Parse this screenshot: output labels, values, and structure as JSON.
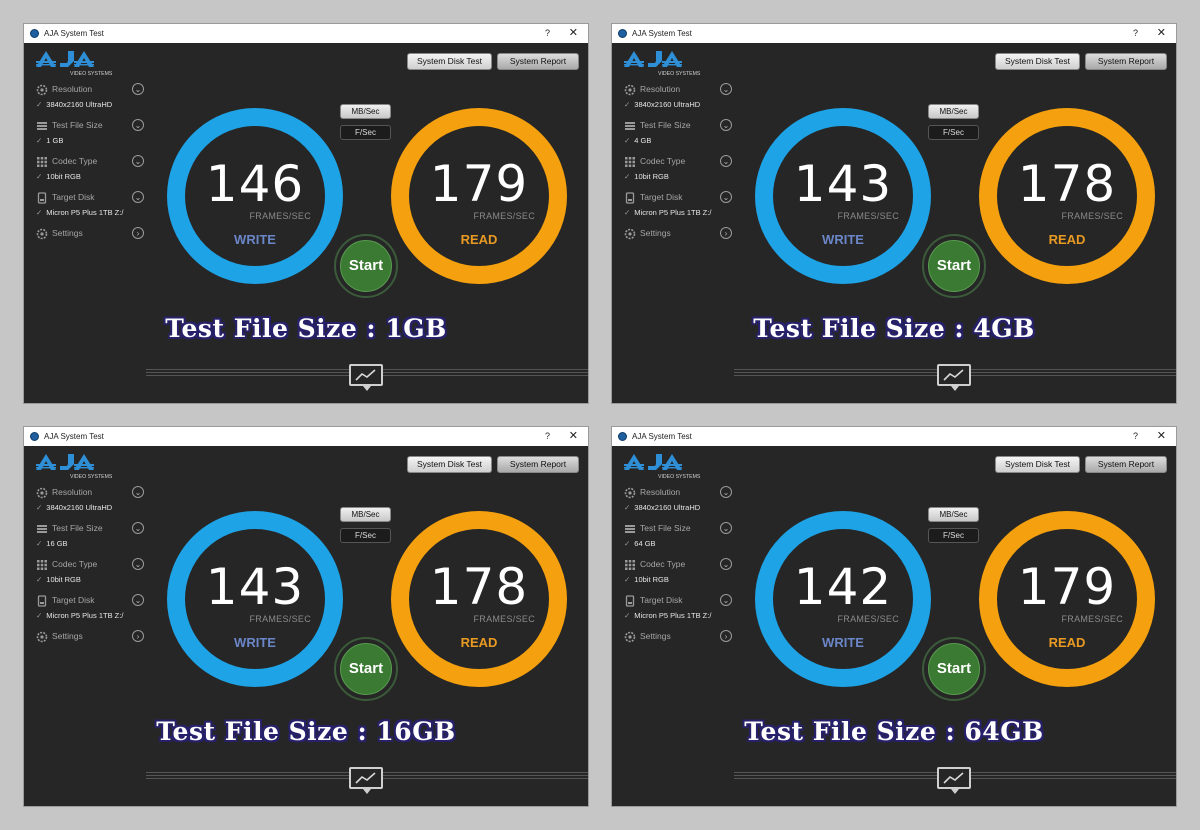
{
  "app": {
    "window_title": "AJA System Test",
    "help_glyph": "?",
    "close_glyph": "✕",
    "logo_text": "AJA",
    "logo_subtext": "VIDEO SYSTEMS",
    "buttons": {
      "system_disk_test": "System Disk Test",
      "system_report": "System Report"
    },
    "sidebar_labels": {
      "resolution": "Resolution",
      "file_size": "Test File Size",
      "codec": "Codec Type",
      "disk": "Target Disk",
      "settings": "Settings"
    },
    "modes": {
      "mb_sec": "MB/Sec",
      "f_sec": "F/Sec"
    },
    "unit_label": "FRAMES/SEC",
    "write_label": "WRITE",
    "read_label": "READ",
    "start_label": "Start",
    "check_glyph": "✓",
    "icons": [
      "gear-icon",
      "file-stack-icon",
      "grid-icon",
      "drive-icon",
      "chevron-down-icon",
      "chevron-right-icon",
      "graph-icon"
    ],
    "colors": {
      "write_ring": "#1ea3e6",
      "read_ring": "#f5a10f",
      "start": "#3b7a33",
      "background": "#262626"
    }
  },
  "panels": [
    {
      "resolution": "3840x2160 UltraHD",
      "file_size": "1 GB",
      "codec": "10bit RGB",
      "disk": "Micron P5 Plus 1TB Z:/",
      "write": "146",
      "read": "179",
      "caption": "Test File Size : 1GB"
    },
    {
      "resolution": "3840x2160 UltraHD",
      "file_size": "4 GB",
      "codec": "10bit RGB",
      "disk": "Micron P5 Plus 1TB Z:/",
      "write": "143",
      "read": "178",
      "caption": "Test File Size : 4GB"
    },
    {
      "resolution": "3840x2160 UltraHD",
      "file_size": "16 GB",
      "codec": "10bit RGB",
      "disk": "Micron P5 Plus 1TB Z:/",
      "write": "143",
      "read": "178",
      "caption": "Test File Size : 16GB"
    },
    {
      "resolution": "3840x2160 UltraHD",
      "file_size": "64 GB",
      "codec": "10bit RGB",
      "disk": "Micron P5 Plus 1TB Z:/",
      "write": "142",
      "read": "179",
      "caption": "Test File Size : 64GB"
    }
  ]
}
